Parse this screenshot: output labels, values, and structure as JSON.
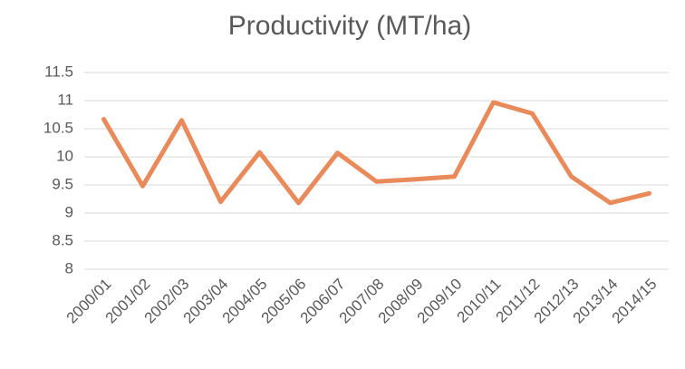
{
  "chart_data": {
    "type": "line",
    "title": "Productivity (MT/ha)",
    "categories": [
      "2000/01",
      "2001/02",
      "2002/03",
      "2003/04",
      "2004/05",
      "2005/06",
      "2006/07",
      "2007/08",
      "2008/09",
      "2009/10",
      "2010/11",
      "2011/12",
      "2012/13",
      "2013/14",
      "2014/15"
    ],
    "series": [
      {
        "name": "Productivity (MT/ha)",
        "color": "#e98a5b",
        "values": [
          10.67,
          9.48,
          10.65,
          9.2,
          10.08,
          9.18,
          10.07,
          9.56,
          9.6,
          9.65,
          10.97,
          10.77,
          9.65,
          9.18,
          9.35
        ]
      }
    ],
    "ylim": [
      8,
      11.5
    ],
    "yticks": [
      8,
      8.5,
      9,
      9.5,
      10,
      10.5,
      11,
      11.5
    ],
    "grid": true
  }
}
